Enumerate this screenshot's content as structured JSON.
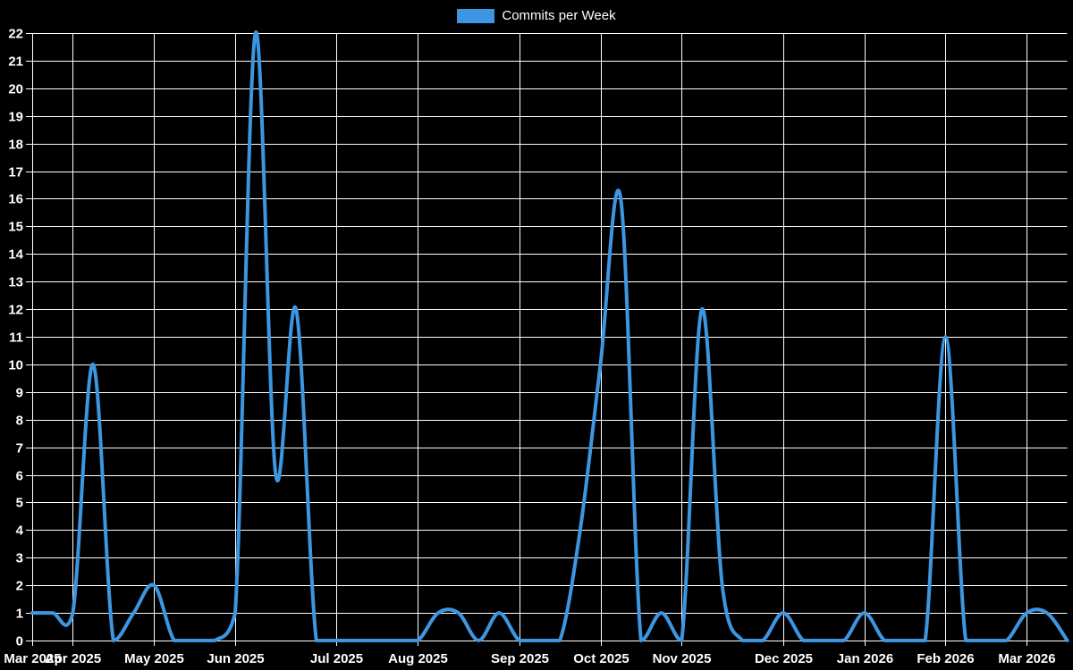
{
  "legend": {
    "label": "Commits per Week",
    "color": "#3d96e2"
  },
  "chart_data": {
    "type": "line",
    "title": "",
    "xlabel": "",
    "ylabel": "",
    "legend_position": "top-center",
    "grid": true,
    "background_color": "#000000",
    "grid_color": "#ffffff",
    "text_color": "#ffffff",
    "line_color": "#3d96e2",
    "ylim": [
      0,
      22
    ],
    "y_tick_step": 1,
    "y_tick_labels": [
      "0",
      "1",
      "2",
      "3",
      "4",
      "5",
      "6",
      "7",
      "8",
      "9",
      "10",
      "11",
      "12",
      "13",
      "14",
      "15",
      "16",
      "17",
      "18",
      "19",
      "20",
      "21",
      "22"
    ],
    "series": [
      {
        "name": "Commits per Week",
        "values": [
          1,
          1,
          1,
          10,
          0,
          1,
          2,
          0,
          0,
          0,
          1,
          22,
          6,
          12,
          0,
          0,
          0,
          0,
          0,
          0,
          1,
          1,
          0,
          1,
          0,
          0,
          0,
          4,
          10,
          16,
          0,
          1,
          0,
          12,
          2,
          0,
          0,
          1,
          0,
          0,
          0,
          1,
          0,
          0,
          0,
          11,
          0,
          0,
          0,
          1,
          1,
          0
        ]
      }
    ],
    "x_ticks": [
      {
        "label": "Mar 2025",
        "week": 0
      },
      {
        "label": "Apr 2025",
        "week": 2
      },
      {
        "label": "May 2025",
        "week": 6
      },
      {
        "label": "Jun 2025",
        "week": 10
      },
      {
        "label": "Jul 2025",
        "week": 15
      },
      {
        "label": "Aug 2025",
        "week": 19
      },
      {
        "label": "Sep 2025",
        "week": 24
      },
      {
        "label": "Oct 2025",
        "week": 28
      },
      {
        "label": "Nov 2025",
        "week": 32
      },
      {
        "label": "Dec 2025",
        "week": 37
      },
      {
        "label": "Jan 2026",
        "week": 41
      },
      {
        "label": "Feb 2026",
        "week": 45
      },
      {
        "label": "Mar 2026",
        "week": 49
      }
    ]
  }
}
